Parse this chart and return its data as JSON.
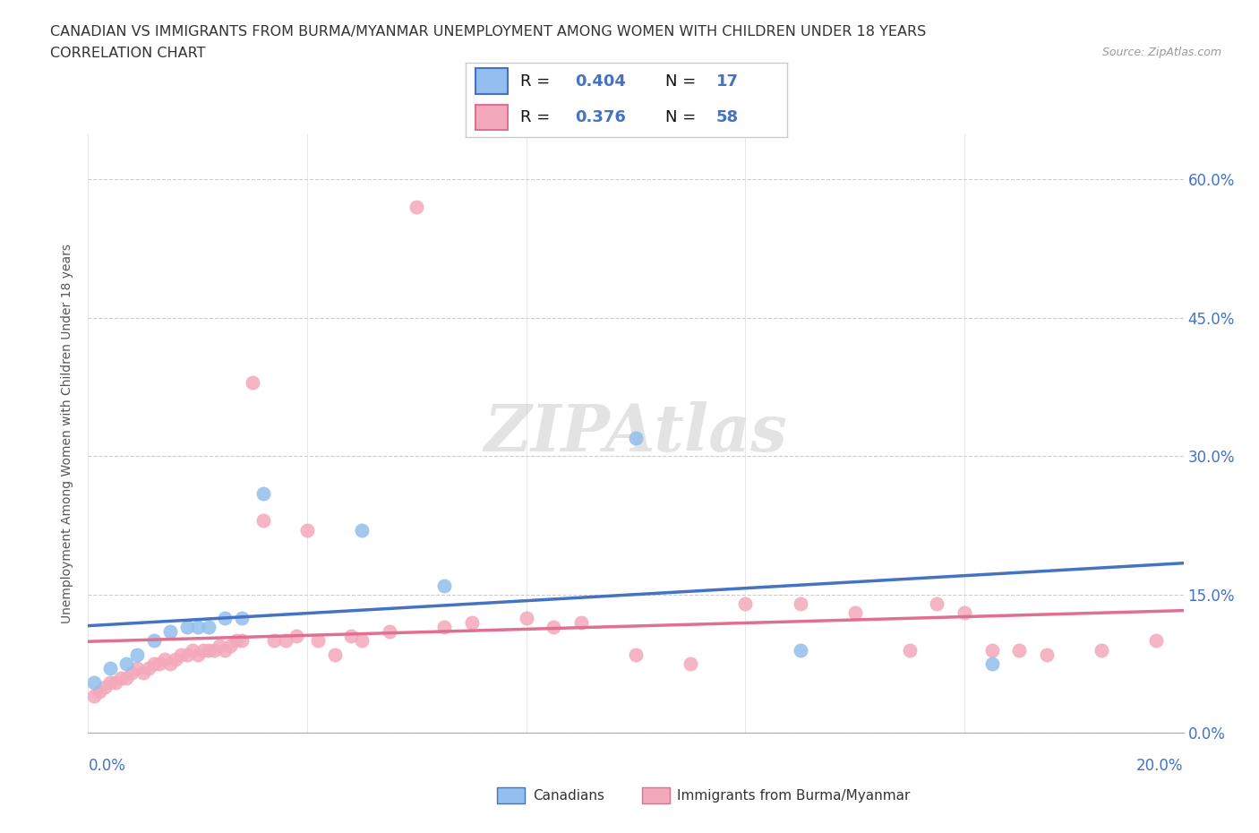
{
  "title_line1": "CANADIAN VS IMMIGRANTS FROM BURMA/MYANMAR UNEMPLOYMENT AMONG WOMEN WITH CHILDREN UNDER 18 YEARS",
  "title_line2": "CORRELATION CHART",
  "source": "Source: ZipAtlas.com",
  "ylabel": "Unemployment Among Women with Children Under 18 years",
  "ytick_vals": [
    0.0,
    0.15,
    0.3,
    0.45,
    0.6
  ],
  "ytick_labels": [
    "0.0%",
    "15.0%",
    "30.0%",
    "45.0%",
    "60.0%"
  ],
  "xlim": [
    0.0,
    0.2
  ],
  "ylim": [
    0.0,
    0.65
  ],
  "canadians_R": "0.404",
  "canadians_N": "17",
  "immigrants_R": "0.376",
  "immigrants_N": "58",
  "canadians_color": "#92BFED",
  "immigrants_color": "#F4A8BB",
  "canadians_line_color": "#4472C4",
  "immigrants_line_color": "#E07090",
  "legend_label_canadians": "Canadians",
  "legend_label_immigrants": "Immigrants from Burma/Myanmar",
  "watermark": "ZIPAtlas",
  "canadians_x": [
    0.001,
    0.004,
    0.007,
    0.009,
    0.012,
    0.015,
    0.018,
    0.02,
    0.022,
    0.025,
    0.028,
    0.032,
    0.05,
    0.065,
    0.1,
    0.13,
    0.165
  ],
  "canadians_y": [
    0.055,
    0.07,
    0.075,
    0.085,
    0.1,
    0.11,
    0.115,
    0.115,
    0.115,
    0.125,
    0.125,
    0.26,
    0.22,
    0.16,
    0.32,
    0.09,
    0.075
  ],
  "immigrants_x": [
    0.001,
    0.002,
    0.003,
    0.004,
    0.005,
    0.006,
    0.007,
    0.008,
    0.009,
    0.01,
    0.011,
    0.012,
    0.013,
    0.014,
    0.015,
    0.016,
    0.017,
    0.018,
    0.019,
    0.02,
    0.021,
    0.022,
    0.023,
    0.024,
    0.025,
    0.026,
    0.027,
    0.028,
    0.03,
    0.032,
    0.034,
    0.036,
    0.038,
    0.04,
    0.042,
    0.045,
    0.048,
    0.05,
    0.055,
    0.06,
    0.065,
    0.07,
    0.08,
    0.085,
    0.09,
    0.1,
    0.11,
    0.12,
    0.13,
    0.14,
    0.15,
    0.155,
    0.16,
    0.165,
    0.17,
    0.175,
    0.185,
    0.195
  ],
  "immigrants_y": [
    0.04,
    0.045,
    0.05,
    0.055,
    0.055,
    0.06,
    0.06,
    0.065,
    0.07,
    0.065,
    0.07,
    0.075,
    0.075,
    0.08,
    0.075,
    0.08,
    0.085,
    0.085,
    0.09,
    0.085,
    0.09,
    0.09,
    0.09,
    0.095,
    0.09,
    0.095,
    0.1,
    0.1,
    0.38,
    0.23,
    0.1,
    0.1,
    0.105,
    0.22,
    0.1,
    0.085,
    0.105,
    0.1,
    0.11,
    0.57,
    0.115,
    0.12,
    0.125,
    0.115,
    0.12,
    0.085,
    0.075,
    0.14,
    0.14,
    0.13,
    0.09,
    0.14,
    0.13,
    0.09,
    0.09,
    0.085,
    0.09,
    0.1
  ]
}
